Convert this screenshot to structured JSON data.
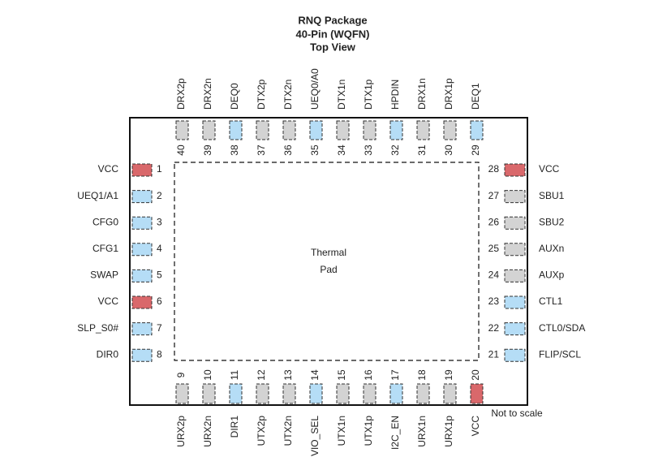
{
  "header": {
    "title": [
      "RNQ Package",
      "40-Pin (WQFN)",
      "Top View"
    ]
  },
  "thermal_pad": [
    "Thermal",
    "Pad"
  ],
  "note": "Not to scale",
  "pins": {
    "top": [
      {
        "number": 40,
        "name": "DRX2p",
        "color": "#d3d3d3"
      },
      {
        "number": 39,
        "name": "DRX2n",
        "color": "#d3d3d3"
      },
      {
        "number": 38,
        "name": "DEQ0",
        "color": "#b5ddf6"
      },
      {
        "number": 37,
        "name": "DTX2p",
        "color": "#d3d3d3"
      },
      {
        "number": 36,
        "name": "DTX2n",
        "color": "#d3d3d3"
      },
      {
        "number": 35,
        "name": "UEQ0/A0",
        "color": "#b5ddf6"
      },
      {
        "number": 34,
        "name": "DTX1n",
        "color": "#d3d3d3"
      },
      {
        "number": 33,
        "name": "DTX1p",
        "color": "#d3d3d3"
      },
      {
        "number": 32,
        "name": "HPDIN",
        "color": "#b5ddf6"
      },
      {
        "number": 31,
        "name": "DRX1n",
        "color": "#d3d3d3"
      },
      {
        "number": 30,
        "name": "DRX1p",
        "color": "#d3d3d3"
      },
      {
        "number": 29,
        "name": "DEQ1",
        "color": "#b5ddf6"
      }
    ],
    "bottom": [
      {
        "number": 9,
        "name": "URX2p",
        "color": "#d3d3d3"
      },
      {
        "number": 10,
        "name": "URX2n",
        "color": "#d3d3d3"
      },
      {
        "number": 11,
        "name": "DIR1",
        "color": "#b5ddf6"
      },
      {
        "number": 12,
        "name": "UTX2p",
        "color": "#d3d3d3"
      },
      {
        "number": 13,
        "name": "UTX2n",
        "color": "#d3d3d3"
      },
      {
        "number": 14,
        "name": "VIO_SEL",
        "color": "#b5ddf6"
      },
      {
        "number": 15,
        "name": "UTX1n",
        "color": "#d3d3d3"
      },
      {
        "number": 16,
        "name": "UTX1p",
        "color": "#d3d3d3"
      },
      {
        "number": 17,
        "name": "I2C_EN",
        "color": "#b5ddf6"
      },
      {
        "number": 18,
        "name": "URX1n",
        "color": "#d3d3d3"
      },
      {
        "number": 19,
        "name": "URX1p",
        "color": "#d3d3d3"
      },
      {
        "number": 20,
        "name": "VCC",
        "color": "#d9686b"
      }
    ],
    "left": [
      {
        "number": 1,
        "name": "VCC",
        "color": "#d9686b"
      },
      {
        "number": 2,
        "name": "UEQ1/A1",
        "color": "#b5ddf6"
      },
      {
        "number": 3,
        "name": "CFG0",
        "color": "#b5ddf6"
      },
      {
        "number": 4,
        "name": "CFG1",
        "color": "#b5ddf6"
      },
      {
        "number": 5,
        "name": "SWAP",
        "color": "#b5ddf6"
      },
      {
        "number": 6,
        "name": "VCC",
        "color": "#d9686b"
      },
      {
        "number": 7,
        "name": "SLP_S0#",
        "color": "#b5ddf6"
      },
      {
        "number": 8,
        "name": "DIR0",
        "color": "#b5ddf6"
      }
    ],
    "right": [
      {
        "number": 28,
        "name": "VCC",
        "color": "#d9686b"
      },
      {
        "number": 27,
        "name": "SBU1",
        "color": "#d3d3d3"
      },
      {
        "number": 26,
        "name": "SBU2",
        "color": "#d3d3d3"
      },
      {
        "number": 25,
        "name": "AUXn",
        "color": "#d3d3d3"
      },
      {
        "number": 24,
        "name": "AUXp",
        "color": "#d3d3d3"
      },
      {
        "number": 23,
        "name": "CTL1",
        "color": "#b5ddf6"
      },
      {
        "number": 22,
        "name": "CTL0/SDA",
        "color": "#b5ddf6"
      },
      {
        "number": 21,
        "name": "FLIP/SCL",
        "color": "#b5ddf6"
      }
    ]
  }
}
